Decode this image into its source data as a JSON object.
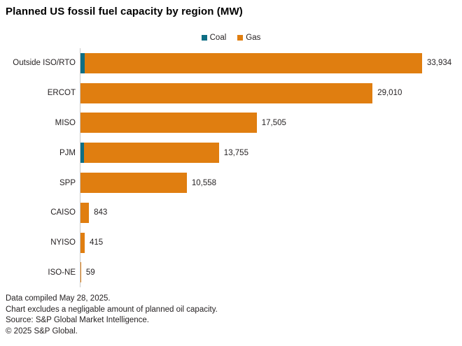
{
  "title": "Planned US fossil fuel capacity by region (MW)",
  "colors": {
    "coal": "#0e6e84",
    "gas": "#e07e10",
    "axis": "#c8c8c8",
    "text": "#231f20"
  },
  "legend": [
    {
      "label": "Coal",
      "color": "#0e6e84"
    },
    {
      "label": "Gas",
      "color": "#e07e10"
    }
  ],
  "chart_data": {
    "type": "bar",
    "orientation": "horizontal",
    "title": "Planned US fossil fuel capacity by region (MW)",
    "xlabel": "",
    "ylabel": "",
    "xlim": [
      0,
      34000
    ],
    "grid": false,
    "legend_position": "top-center",
    "categories": [
      "Outside ISO/RTO",
      "ERCOT",
      "MISO",
      "PJM",
      "SPP",
      "CAISO",
      "NYISO",
      "ISO-NE"
    ],
    "series": [
      {
        "name": "Coal",
        "color": "#0e6e84",
        "values": [
          420,
          0,
          0,
          330,
          0,
          0,
          0,
          0
        ],
        "note": "unlabeled segments, estimated from bar length"
      },
      {
        "name": "Gas",
        "color": "#e07e10",
        "values": [
          33514,
          29010,
          17505,
          13425,
          10558,
          843,
          415,
          59
        ]
      }
    ],
    "totals": [
      33934,
      29010,
      17505,
      13755,
      10558,
      843,
      415,
      59
    ],
    "total_labels": [
      "33,934",
      "29,010",
      "17,505",
      "13,755",
      "10,558",
      "843",
      "415",
      "59"
    ]
  },
  "footer": {
    "lines": [
      "Data compiled May 28, 2025.",
      "Chart excludes a negligable amount of planned oil capacity.",
      "Source: S&P Global Market Intelligence.",
      "© 2025 S&P Global."
    ]
  }
}
